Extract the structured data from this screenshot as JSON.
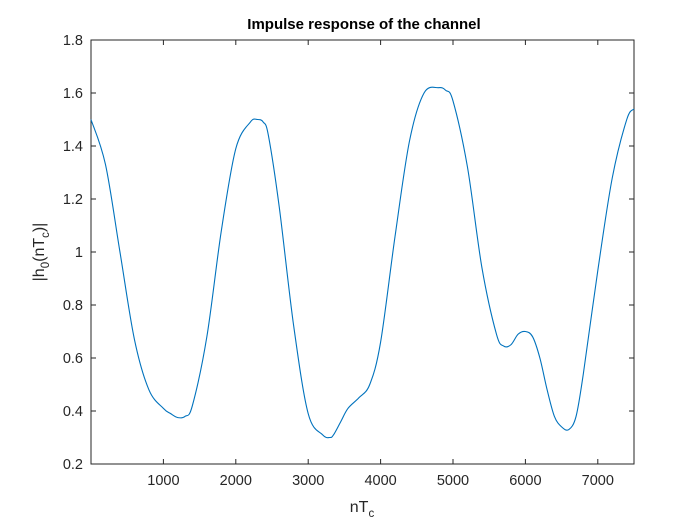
{
  "chart_data": {
    "type": "line",
    "title": "Impulse response of the channel",
    "xlabel": {
      "base": "nT",
      "sub": "c"
    },
    "ylabel": {
      "pre": "|h",
      "sub1": "0",
      "mid": "(nT",
      "sub2": "c",
      "post": ")|"
    },
    "xlim": [
      0,
      7500
    ],
    "ylim": [
      0.2,
      1.8
    ],
    "xticks": [
      1000,
      2000,
      3000,
      4000,
      5000,
      6000,
      7000
    ],
    "xtick_labels": [
      "1000",
      "2000",
      "3000",
      "4000",
      "5000",
      "6000",
      "7000"
    ],
    "yticks": [
      0.2,
      0.4,
      0.6,
      0.8,
      1.0,
      1.2,
      1.4,
      1.6,
      1.8
    ],
    "ytick_labels": [
      "0.2",
      "0.4",
      "0.6",
      "0.8",
      "1",
      "1.2",
      "1.4",
      "1.6",
      "1.8"
    ],
    "grid": false,
    "line_color": "#0072BD",
    "series": [
      {
        "x": [
          0,
          200,
          400,
          600,
          800,
          1000,
          1100,
          1200,
          1300,
          1400,
          1600,
          1800,
          2000,
          2200,
          2300,
          2380,
          2450,
          2600,
          2800,
          3000,
          3200,
          3300,
          3350,
          3450,
          3550,
          3700,
          3850,
          4000,
          4200,
          4400,
          4600,
          4800,
          4900,
          5000,
          5200,
          5400,
          5600,
          5700,
          5800,
          5900,
          6000,
          6100,
          6200,
          6300,
          6400,
          6500,
          6600,
          6700,
          6800,
          7000,
          7200,
          7400,
          7500
        ],
        "y": [
          1.5,
          1.33,
          1.0,
          0.67,
          0.48,
          0.41,
          0.39,
          0.375,
          0.38,
          0.42,
          0.68,
          1.08,
          1.39,
          1.49,
          1.5,
          1.49,
          1.44,
          1.17,
          0.72,
          0.39,
          0.31,
          0.3,
          0.31,
          0.36,
          0.41,
          0.45,
          0.5,
          0.66,
          1.06,
          1.42,
          1.6,
          1.62,
          1.61,
          1.57,
          1.32,
          0.94,
          0.69,
          0.645,
          0.65,
          0.69,
          0.7,
          0.68,
          0.6,
          0.48,
          0.38,
          0.34,
          0.33,
          0.38,
          0.54,
          0.93,
          1.28,
          1.5,
          1.54
        ]
      }
    ]
  }
}
